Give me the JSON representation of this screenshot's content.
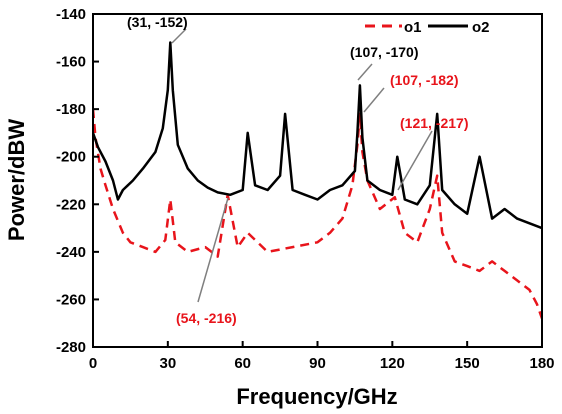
{
  "chart_data": {
    "type": "line",
    "xlabel": "Frequency/GHz",
    "ylabel": "Power/dBW",
    "xlim": [
      0,
      180
    ],
    "ylim": [
      -280,
      -140
    ],
    "xticks": [
      0,
      30,
      60,
      90,
      120,
      150,
      180
    ],
    "yticks": [
      -140,
      -160,
      -180,
      -200,
      -220,
      -240,
      -260,
      -280
    ],
    "xtick_labels": [
      "0",
      "30",
      "60",
      "90",
      "120",
      "150",
      "180"
    ],
    "ytick_labels": [
      "-140",
      "-160",
      "-180",
      "-200",
      "-220",
      "-240",
      "-260",
      "-280"
    ],
    "legend_position": "top-right",
    "series": [
      {
        "name": "o1",
        "color": "#e8141b",
        "style": "dashed",
        "x": [
          0,
          1,
          3,
          5,
          8,
          12,
          15,
          20,
          25,
          29,
          31,
          33,
          38,
          45,
          50,
          54,
          58,
          62,
          70,
          80,
          90,
          95,
          100,
          104,
          106,
          107,
          108,
          110,
          115,
          121,
          125,
          130,
          135,
          138,
          140,
          145,
          150,
          155,
          160,
          165,
          170,
          175,
          178,
          180
        ],
        "y": [
          -180,
          -192,
          -205,
          -212,
          -222,
          -232,
          -236,
          -238,
          -240,
          -235,
          -218,
          -236,
          -240,
          -238,
          -242,
          -216,
          -238,
          -232,
          -240,
          -238,
          -236,
          -232,
          -226,
          -212,
          -195,
          -182,
          -198,
          -210,
          -222,
          -217,
          -232,
          -236,
          -222,
          -208,
          -232,
          -244,
          -246,
          -248,
          -244,
          -248,
          -252,
          -256,
          -262,
          -268
        ]
      },
      {
        "name": "o2",
        "color": "#000000",
        "style": "solid",
        "x": [
          0,
          2,
          5,
          8,
          10,
          12,
          16,
          20,
          25,
          28,
          30,
          31,
          32,
          34,
          38,
          42,
          46,
          50,
          55,
          60,
          62,
          65,
          70,
          75,
          77,
          80,
          85,
          90,
          95,
          100,
          105,
          106,
          107,
          108,
          110,
          115,
          120,
          122,
          125,
          130,
          135,
          138,
          140,
          145,
          150,
          155,
          160,
          165,
          170,
          175,
          180
        ],
        "y": [
          -190,
          -196,
          -202,
          -210,
          -218,
          -214,
          -210,
          -205,
          -198,
          -188,
          -172,
          -152,
          -172,
          -195,
          -205,
          -210,
          -213,
          -215,
          -216,
          -214,
          -190,
          -212,
          -214,
          -208,
          -182,
          -214,
          -216,
          -218,
          -214,
          -212,
          -206,
          -190,
          -170,
          -192,
          -210,
          -214,
          -216,
          -200,
          -218,
          -220,
          -212,
          -182,
          -214,
          -220,
          -224,
          -200,
          -226,
          -222,
          -226,
          -228,
          -230
        ]
      }
    ],
    "annotations": [
      {
        "text": "(31, -152)",
        "color": "#000000",
        "x": 31,
        "y": -152
      },
      {
        "text": "(107, -170)",
        "color": "#000000",
        "x": 107,
        "y": -170
      },
      {
        "text": "(107, -182)",
        "color": "#e8141b",
        "x": 107,
        "y": -182
      },
      {
        "text": "(121, -217)",
        "color": "#e8141b",
        "x": 121,
        "y": -217
      },
      {
        "text": "(54, -216)",
        "color": "#e8141b",
        "x": 54,
        "y": -216
      }
    ]
  }
}
